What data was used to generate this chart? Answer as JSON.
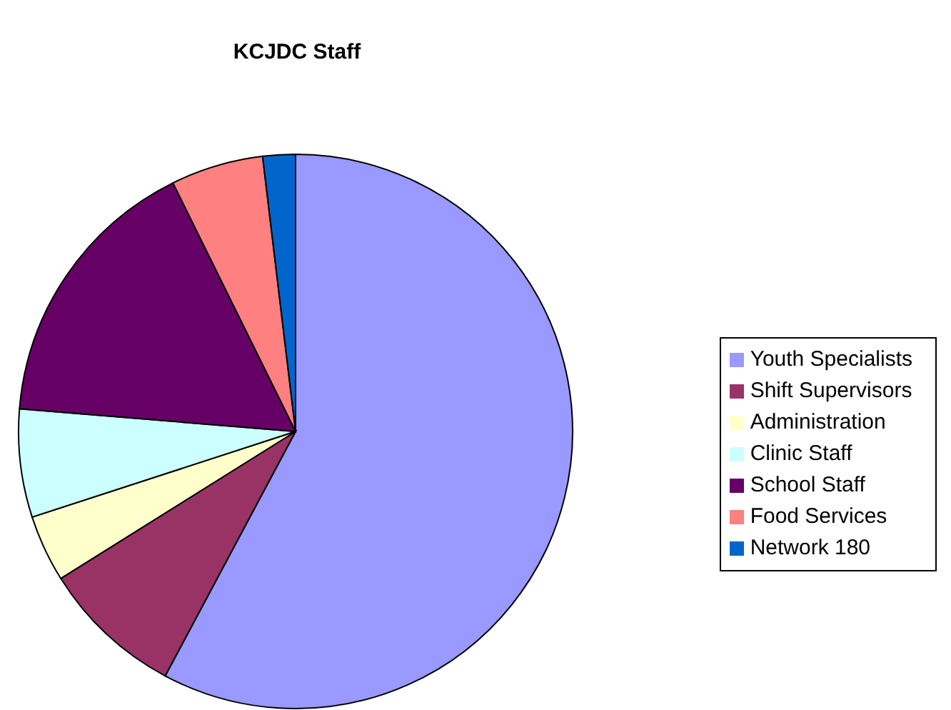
{
  "chart_data": {
    "type": "pie",
    "title": "KCJDC Staff",
    "categories": [
      "Youth Specialists",
      "Shift Supervisors",
      "Administration",
      "Clinic Staff",
      "School Staff",
      "Food Services",
      "Network 180"
    ],
    "values": [
      57.8,
      8.3,
      3.9,
      6.3,
      16.4,
      5.4,
      1.9
    ],
    "colors": [
      "#9999ff",
      "#993366",
      "#ffffcc",
      "#ccffff",
      "#660066",
      "#ff8080",
      "#0066cc"
    ],
    "legend": "right"
  }
}
